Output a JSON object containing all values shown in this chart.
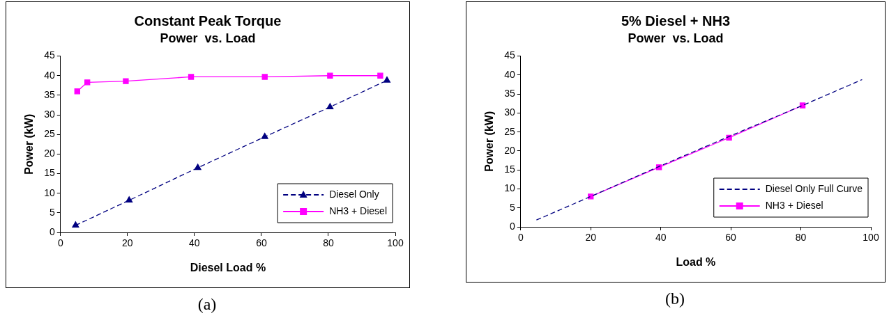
{
  "chart_data": [
    {
      "type": "line",
      "title": "Constant Peak Torque",
      "subtitle": "Power  vs. Load",
      "xlabel": "Diesel Load %",
      "ylabel": "Power (kW)",
      "xlim": [
        0,
        100
      ],
      "xticks": [
        0,
        20,
        40,
        60,
        80,
        100
      ],
      "ylim": [
        0,
        45
      ],
      "yticks": [
        0,
        5,
        10,
        15,
        20,
        25,
        30,
        35,
        40,
        45
      ],
      "legend": "bottom right",
      "annotations": [
        "(a)"
      ],
      "series": [
        {
          "name": "Diesel Only",
          "color": "#000080",
          "marker": "triangle",
          "line_style": "dashed",
          "x": [
            4.5,
            20.5,
            41,
            61,
            80.5,
            97.5
          ],
          "values": [
            1.8,
            8.2,
            16.5,
            24.4,
            32,
            38.8
          ]
        },
        {
          "name": "NH3 + Diesel",
          "color": "#ff00ff",
          "marker": "square",
          "line_style": "solid",
          "x": [
            5,
            8,
            19.5,
            39,
            61,
            80.5,
            95.5
          ],
          "values": [
            36,
            38.3,
            38.6,
            39.7,
            39.7,
            40,
            40
          ]
        }
      ]
    },
    {
      "type": "line",
      "title": "5% Diesel + NH3",
      "subtitle": "Power  vs. Load",
      "xlabel": "Load %",
      "ylabel": "Power (kW)",
      "xlim": [
        0,
        100
      ],
      "xticks": [
        0,
        20,
        40,
        60,
        80,
        100
      ],
      "ylim": [
        0,
        45
      ],
      "yticks": [
        0,
        5,
        10,
        15,
        20,
        25,
        30,
        35,
        40,
        45
      ],
      "legend": "bottom right",
      "annotations": [
        "(b)"
      ],
      "series": [
        {
          "name": "Diesel Only Full Curve",
          "color": "#000080",
          "marker": "none",
          "line_style": "dashed",
          "x": [
            4.5,
            20.5,
            41,
            61,
            80.5,
            97.5
          ],
          "values": [
            1.8,
            8.2,
            16.5,
            24.4,
            32,
            38.8
          ]
        },
        {
          "name": "NH3 + Diesel",
          "color": "#ff00ff",
          "marker": "square",
          "line_style": "solid",
          "x": [
            20,
            39.5,
            59.5,
            80.5
          ],
          "values": [
            8,
            15.7,
            23.5,
            32
          ]
        }
      ]
    }
  ]
}
